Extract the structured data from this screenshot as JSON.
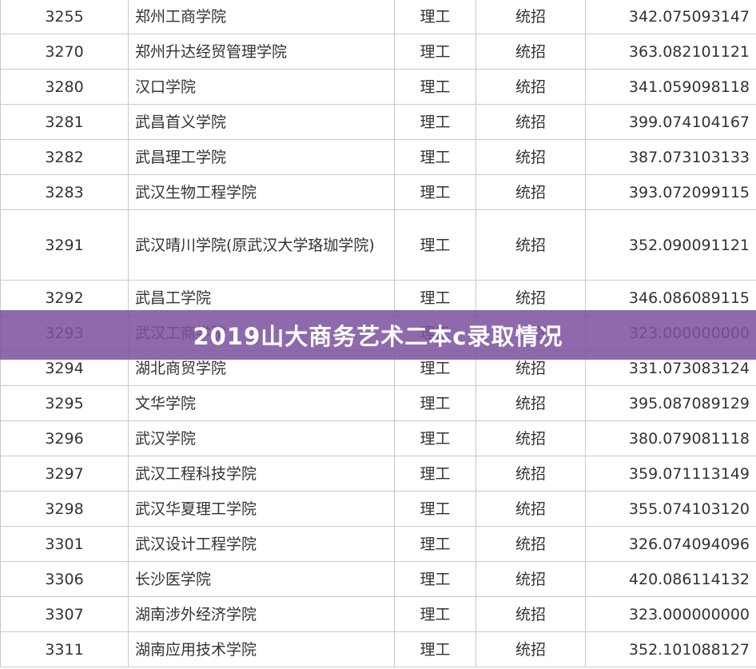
{
  "banner": {
    "title": "2019山大商务艺术二本c录取情况"
  },
  "table": {
    "rows": [
      {
        "code": "3255",
        "school": "郑州工商学院",
        "subject": "理工",
        "type": "统招",
        "score": "342.075093147"
      },
      {
        "code": "3270",
        "school": "郑州升达经贸管理学院",
        "subject": "理工",
        "type": "统招",
        "score": "363.082101121"
      },
      {
        "code": "3280",
        "school": "汉口学院",
        "subject": "理工",
        "type": "统招",
        "score": "341.059098118"
      },
      {
        "code": "3281",
        "school": "武昌首义学院",
        "subject": "理工",
        "type": "统招",
        "score": "399.074104167"
      },
      {
        "code": "3282",
        "school": "武昌理工学院",
        "subject": "理工",
        "type": "统招",
        "score": "387.073103133"
      },
      {
        "code": "3283",
        "school": "武汉生物工程学院",
        "subject": "理工",
        "type": "统招",
        "score": "393.072099115"
      },
      {
        "code": "3291",
        "school": "武汉晴川学院(原武汉大学珞珈学院)",
        "subject": "理工",
        "type": "统招",
        "score": "352.090091121"
      },
      {
        "code": "3292",
        "school": "武昌工学院",
        "subject": "理工",
        "type": "统招",
        "score": "346.086089115"
      },
      {
        "code": "3293",
        "school": "武汉工商学院",
        "subject": "理工",
        "type": "统招",
        "score": "323.000000000"
      },
      {
        "code": "3294",
        "school": "湖北商贸学院",
        "subject": "理工",
        "type": "统招",
        "score": "331.073083124"
      },
      {
        "code": "3295",
        "school": "文华学院",
        "subject": "理工",
        "type": "统招",
        "score": "395.087089129"
      },
      {
        "code": "3296",
        "school": "武汉学院",
        "subject": "理工",
        "type": "统招",
        "score": "380.079081118"
      },
      {
        "code": "3297",
        "school": "武汉工程科技学院",
        "subject": "理工",
        "type": "统招",
        "score": "359.071113149"
      },
      {
        "code": "3298",
        "school": "武汉华夏理工学院",
        "subject": "理工",
        "type": "统招",
        "score": "355.074103120"
      },
      {
        "code": "3301",
        "school": "武汉设计工程学院",
        "subject": "理工",
        "type": "统招",
        "score": "326.074094096"
      },
      {
        "code": "3306",
        "school": "长沙医学院",
        "subject": "理工",
        "type": "统招",
        "score": "420.086114132"
      },
      {
        "code": "3307",
        "school": "湖南涉外经济学院",
        "subject": "理工",
        "type": "统招",
        "score": "323.000000000"
      },
      {
        "code": "3311",
        "school": "湖南应用技术学院",
        "subject": "理工",
        "type": "统招",
        "score": "352.101088127"
      }
    ]
  }
}
